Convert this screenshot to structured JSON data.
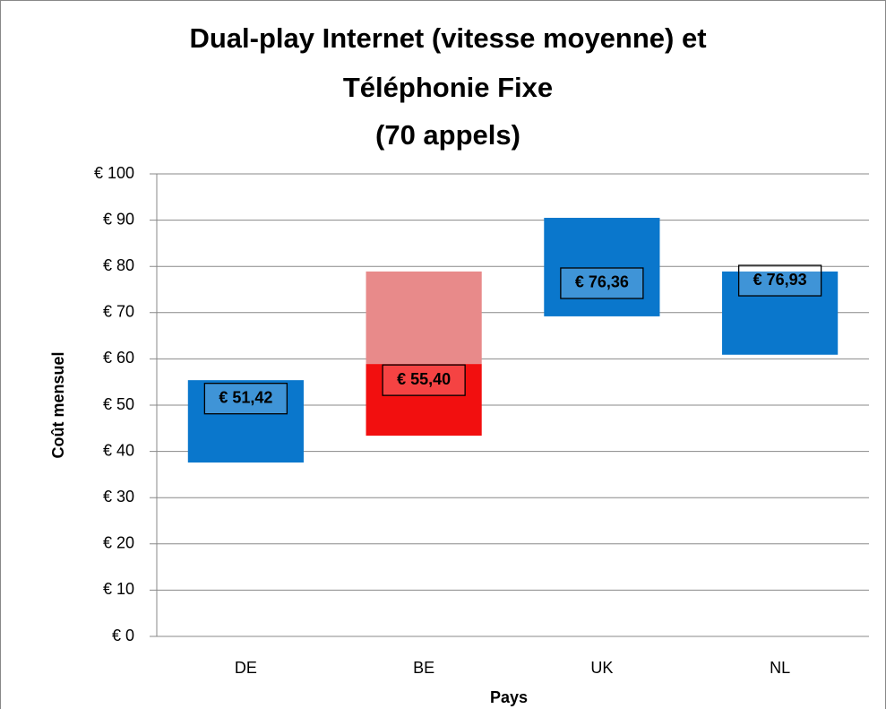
{
  "chart_data": {
    "type": "floating_bar",
    "title": [
      "Dual-play Internet (vitesse moyenne) et",
      "Téléphonie Fixe",
      "(70 appels)"
    ],
    "x_label": "Pays",
    "y_label": "Coût mensuel",
    "categories": [
      "DE",
      "BE",
      "UK",
      "NL"
    ],
    "ranges": [
      [
        {
          "low": 37.6,
          "high": 55.4,
          "color": "#0a77cc"
        }
      ],
      [
        {
          "low": 43.4,
          "high": 58.9,
          "color": "#f20f0f"
        },
        {
          "low": 58.9,
          "high": 78.9,
          "color": "#e88a8a"
        }
      ],
      [
        {
          "low": 69.2,
          "high": 90.5,
          "color": "#0a77cc"
        }
      ],
      [
        {
          "low": 60.9,
          "high": 78.9,
          "color": "#0a77cc"
        }
      ]
    ],
    "values": [
      51.42,
      55.4,
      76.36,
      76.93
    ],
    "value_labels": [
      "€ 51,42",
      "€ 55,40",
      "€ 76,36",
      "€ 76,93"
    ],
    "ylim": [
      0,
      100
    ],
    "yticks": [
      {
        "value": 0,
        "label": "€ 0"
      },
      {
        "value": 10,
        "label": "€ 10"
      },
      {
        "value": 20,
        "label": "€ 20"
      },
      {
        "value": 30,
        "label": "€ 30"
      },
      {
        "value": 40,
        "label": "€ 40"
      },
      {
        "value": 50,
        "label": "€ 50"
      },
      {
        "value": 60,
        "label": "€ 60"
      },
      {
        "value": 70,
        "label": "€ 70"
      },
      {
        "value": 80,
        "label": "€ 80"
      },
      {
        "value": 90,
        "label": "€ 90"
      },
      {
        "value": 100,
        "label": "€ 100"
      }
    ],
    "grid": true
  }
}
